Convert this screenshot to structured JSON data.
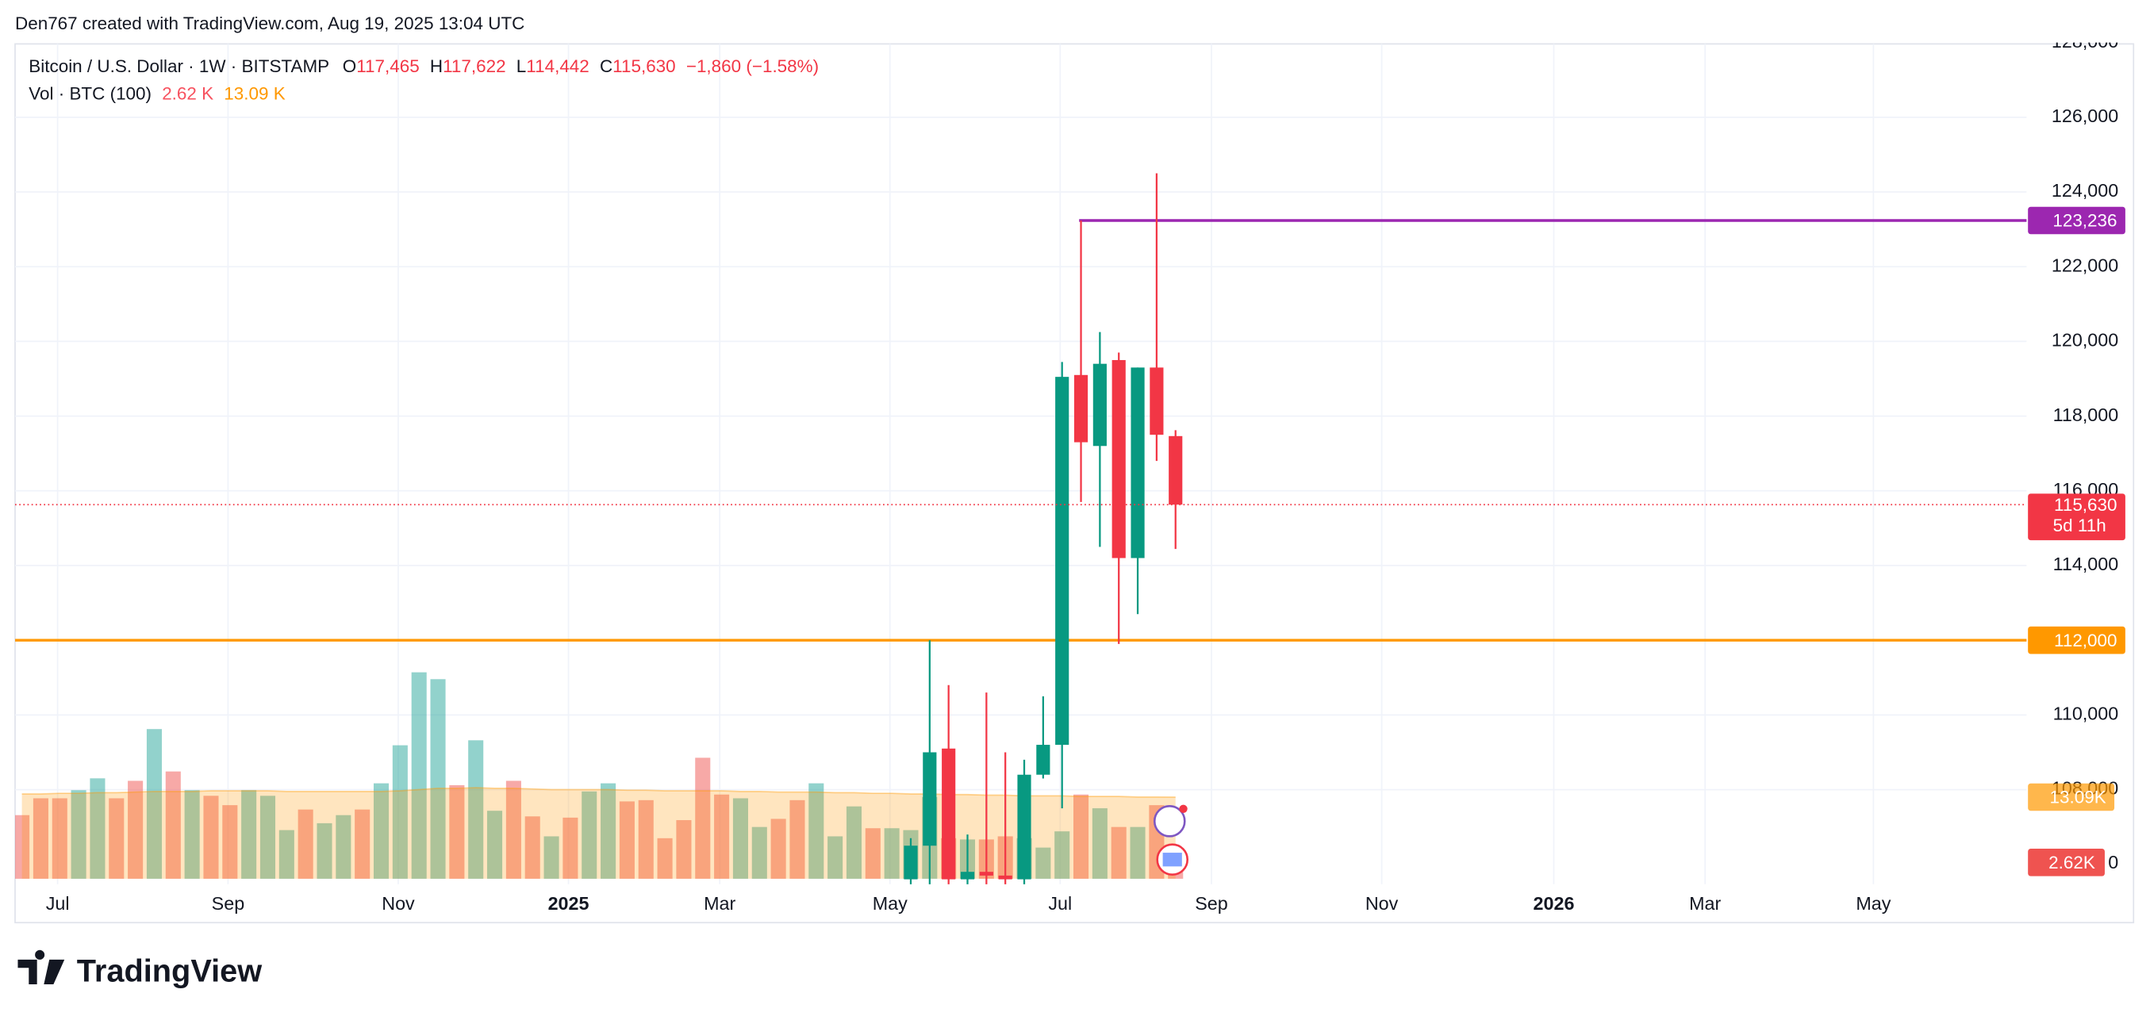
{
  "header": "Den767 created with TradingView.com, Aug 19, 2025 13:04 UTC",
  "chart_data": {
    "type": "candlestick",
    "title": "Bitcoin / U.S. Dollar · 1W · BITSTAMP",
    "legend": {
      "o_label": "O",
      "o": "117,465",
      "h_label": "H",
      "h": "117,622",
      "l_label": "L",
      "l": "114,442",
      "c_label": "C",
      "c": "115,630",
      "change": "−1,860 (−1.58%)"
    },
    "volume_legend": {
      "title": "Vol · BTC (100)",
      "last": "2.62 K",
      "ma": "13.09 K"
    },
    "xlim": [
      -0.36,
      106.0
    ],
    "xticks": [
      {
        "value": 1.89,
        "label": "Jul"
      },
      {
        "value": 10.9,
        "label": "Sep"
      },
      {
        "value": 19.9,
        "label": "Nov"
      },
      {
        "value": 28.9,
        "label": "2025"
      },
      {
        "value": 36.9,
        "label": "Mar"
      },
      {
        "value": 45.9,
        "label": "May"
      },
      {
        "value": 54.9,
        "label": "Jul"
      },
      {
        "value": 62.9,
        "label": "Sep"
      },
      {
        "value": 71.9,
        "label": "Nov"
      },
      {
        "value": 81.0,
        "label": "2026"
      },
      {
        "value": 89.0,
        "label": "Mar"
      },
      {
        "value": 97.9,
        "label": "May"
      }
    ],
    "ylim": [
      105468,
      127963
    ],
    "yticks": [
      {
        "value": 108000,
        "label": "108,000"
      },
      {
        "value": 110000,
        "label": "110,000"
      },
      {
        "value": 112000,
        "label": "112,000"
      },
      {
        "value": 114000,
        "label": "114,000"
      },
      {
        "value": 116000,
        "label": "116,000"
      },
      {
        "value": 118000,
        "label": "118,000"
      },
      {
        "value": 120000,
        "label": "120,000"
      },
      {
        "value": 122000,
        "label": "122,000"
      },
      {
        "value": 124000,
        "label": "124,000"
      },
      {
        "value": 126000,
        "label": "126,000"
      },
      {
        "value": 128000,
        "label": "128,000"
      }
    ],
    "grid": true,
    "candles": {
      "x": [
        47,
        48,
        49,
        50,
        51,
        52,
        53,
        54,
        55,
        56,
        57,
        58,
        59,
        60,
        61
      ],
      "open": [
        105600,
        106500,
        109100,
        105600,
        105800,
        105700,
        105600,
        108400,
        109200,
        119100,
        117200,
        119500,
        114200,
        119300,
        117465
      ],
      "high": [
        106700,
        112000,
        110800,
        106800,
        110600,
        109000,
        108800,
        110500,
        119450,
        123236,
        120250,
        119700,
        119300,
        124500,
        117622
      ],
      "low": [
        105400,
        105400,
        105400,
        105400,
        105400,
        105400,
        105400,
        108300,
        107500,
        115700,
        114500,
        111900,
        112700,
        116800,
        114442
      ],
      "close": [
        106500,
        109000,
        105600,
        105800,
        105700,
        105600,
        108400,
        109200,
        119050,
        117300,
        119400,
        114200,
        119300,
        117500,
        115630
      ],
      "up_color": "#089981",
      "down_color": "#f23645"
    },
    "volume": {
      "values": [
        10.2,
        12.9,
        12.9,
        14.2,
        16.1,
        12.9,
        15.7,
        24.0,
        17.2,
        14.2,
        13.3,
        11.8,
        14.2,
        13.3,
        7.8,
        11.1,
        8.9,
        10.2,
        11.1,
        15.3,
        21.4,
        33.1,
        32.0,
        15.0,
        22.2,
        10.9,
        15.7,
        10.0,
        6.8,
        9.8,
        14.0,
        15.3,
        12.4,
        12.6,
        6.5,
        9.4,
        19.4,
        13.5,
        12.9,
        8.3,
        9.6,
        12.6,
        15.3,
        6.8,
        11.6,
        8.1,
        8.1,
        7.8,
        13.1,
        6.5,
        6.3,
        6.3,
        6.8,
        6.5,
        5.0,
        7.6,
        13.5,
        11.3,
        8.3,
        8.3,
        11.8,
        2.62
      ],
      "colors": [
        "#ef5350",
        "#ef5350",
        "#ef5350",
        "#26a69a",
        "#26a69a",
        "#ef5350",
        "#ef5350",
        "#26a69a",
        "#ef5350",
        "#26a69a",
        "#ef5350",
        "#ef5350",
        "#26a69a",
        "#26a69a",
        "#26a69a",
        "#ef5350",
        "#26a69a",
        "#26a69a",
        "#ef5350",
        "#26a69a",
        "#26a69a",
        "#26a69a",
        "#26a69a",
        "#ef5350",
        "#26a69a",
        "#26a69a",
        "#ef5350",
        "#ef5350",
        "#26a69a",
        "#ef5350",
        "#26a69a",
        "#26a69a",
        "#ef5350",
        "#ef5350",
        "#ef5350",
        "#ef5350",
        "#ef5350",
        "#ef5350",
        "#26a69a",
        "#26a69a",
        "#ef5350",
        "#ef5350",
        "#26a69a",
        "#26a69a",
        "#26a69a",
        "#ef5350",
        "#26a69a",
        "#26a69a",
        "#26a69a",
        "#ef5350",
        "#26a69a",
        "#ef5350",
        "#ef5350",
        "#26a69a",
        "#26a69a",
        "#26a69a",
        "#ef5350",
        "#26a69a",
        "#ef5350",
        "#26a69a",
        "#ef5350",
        "#ef5350"
      ],
      "ma": [
        13.6,
        13.6,
        13.7,
        13.7,
        13.8,
        13.8,
        13.9,
        14.0,
        14.0,
        14.0,
        14.1,
        14.1,
        14.1,
        14.1,
        14.0,
        14.0,
        14.0,
        14.0,
        14.0,
        14.0,
        14.1,
        14.3,
        14.5,
        14.5,
        14.6,
        14.5,
        14.5,
        14.4,
        14.3,
        14.3,
        14.3,
        14.3,
        14.2,
        14.2,
        14.1,
        14.1,
        14.1,
        14.1,
        14.0,
        14.0,
        13.9,
        13.9,
        13.9,
        13.8,
        13.8,
        13.7,
        13.7,
        13.6,
        13.6,
        13.5,
        13.5,
        13.4,
        13.4,
        13.3,
        13.3,
        13.3,
        13.2,
        13.2,
        13.2,
        13.1,
        13.1,
        13.09
      ],
      "ma_color": "#ff9800",
      "ylim": [
        0,
        40
      ],
      "yticks": [
        0
      ],
      "last_label": "2.62K",
      "ma_label": "13.09K"
    },
    "hlines": [
      {
        "value": 123236,
        "label": "123,236",
        "color": "#9c27b0"
      },
      {
        "value": 112000,
        "label": "112,000",
        "color": "#ff9800"
      }
    ],
    "last_price": {
      "label": "115,630",
      "countdown": "5d 11h",
      "color": "#f23645"
    }
  },
  "footer": "TradingView"
}
